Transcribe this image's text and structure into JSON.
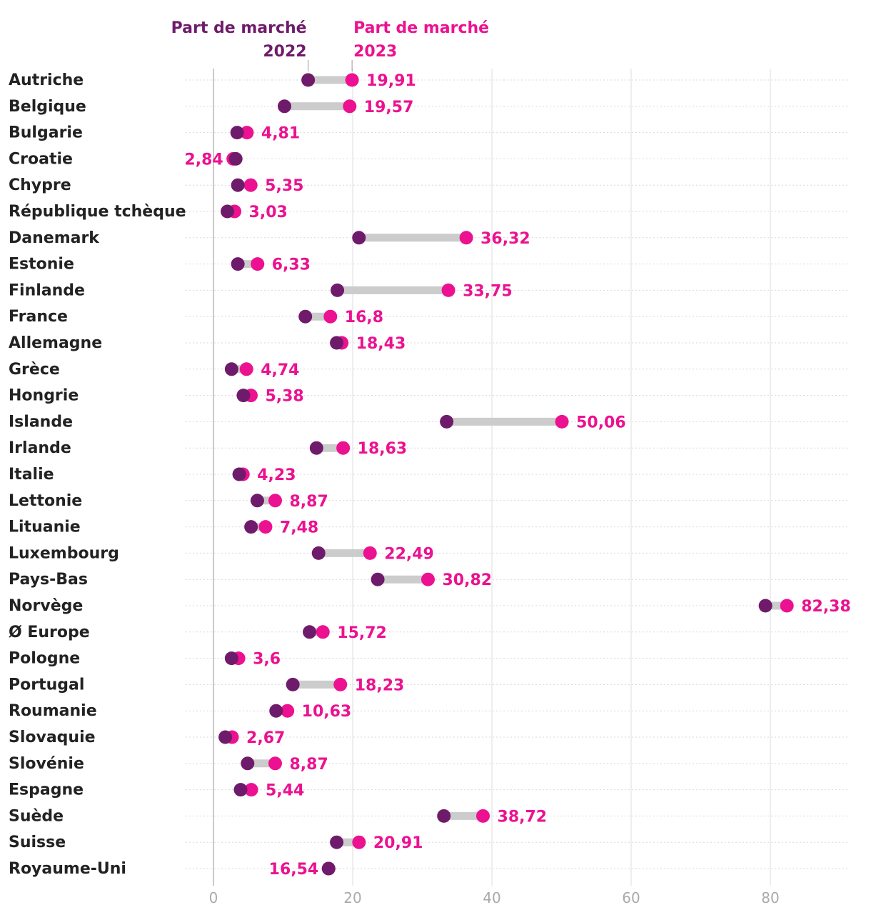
{
  "chart_data": {
    "type": "dumbbell",
    "title": "",
    "xlabel": "",
    "ylabel": "",
    "xlim": [
      0,
      91
    ],
    "x_ticks": [
      "0",
      "20",
      "40",
      "60",
      "80"
    ],
    "x_tick_values": [
      0,
      20,
      40,
      60,
      80
    ],
    "legend": {
      "series_2022": "Part de marché 2022",
      "series_2022_line1": "Part de marché",
      "series_2022_line2": "2022",
      "series_2023": "Part de marché 2023",
      "series_2023_line1": "Part de marché",
      "series_2023_line2": "2023"
    },
    "colors": {
      "series_2022": "#6f1b6b",
      "series_2023": "#ec1190",
      "connector": "#cccccc",
      "label_text": "#222222",
      "grid": "#d9d9d9",
      "axis": "#bdbdbd",
      "tick_text": "#aaaaaa"
    },
    "categories": [
      "Autriche",
      "Belgique",
      "Bulgarie",
      "Croatie",
      "Chypre",
      "République tchèque",
      "Danemark",
      "Estonie",
      "Finlande",
      "France",
      "Allemagne",
      "Grèce",
      "Hongrie",
      "Islande",
      "Irlande",
      "Italie",
      "Lettonie",
      "Lituanie",
      "Luxembourg",
      "Pays-Bas",
      "Norvège",
      "Ø Europe",
      "Pologne",
      "Portugal",
      "Roumanie",
      "Slovaquie",
      "Slovénie",
      "Espagne",
      "Suède",
      "Suisse",
      "Royaume-Uni"
    ],
    "values_2022": [
      13.6,
      10.2,
      3.4,
      3.2,
      3.5,
      2.0,
      20.9,
      3.5,
      17.8,
      13.2,
      17.7,
      2.6,
      4.3,
      33.5,
      14.8,
      3.7,
      6.3,
      5.4,
      15.1,
      23.6,
      79.3,
      13.8,
      2.6,
      11.4,
      9.0,
      1.7,
      4.9,
      3.9,
      33.1,
      17.7,
      16.54
    ],
    "values_2023": [
      19.91,
      19.57,
      4.81,
      2.84,
      5.35,
      3.03,
      36.32,
      6.33,
      33.75,
      16.8,
      18.43,
      4.74,
      5.38,
      50.06,
      18.63,
      4.23,
      8.87,
      7.48,
      22.49,
      30.82,
      82.38,
      15.72,
      3.6,
      18.23,
      10.63,
      2.67,
      8.87,
      5.44,
      38.72,
      20.91,
      16.54
    ],
    "value_labels": [
      "19,91",
      "19,57",
      "4,81",
      "2,84",
      "5,35",
      "3,03",
      "36,32",
      "6,33",
      "33,75",
      "16,8",
      "18,43",
      "4,74",
      "5,38",
      "50,06",
      "18,63",
      "4,23",
      "8,87",
      "7,48",
      "22,49",
      "30,82",
      "82,38",
      "15,72",
      "3,6",
      "18,23",
      "10,63",
      "2,67",
      "8,87",
      "5,44",
      "38,72",
      "20,91",
      "16,54"
    ],
    "label_side": [
      "right",
      "right",
      "right",
      "left",
      "right",
      "right",
      "right",
      "right",
      "right",
      "right",
      "right",
      "right",
      "right",
      "right",
      "right",
      "right",
      "right",
      "right",
      "right",
      "right",
      "right",
      "right",
      "right",
      "right",
      "right",
      "right",
      "right",
      "right",
      "right",
      "right",
      "left"
    ]
  }
}
